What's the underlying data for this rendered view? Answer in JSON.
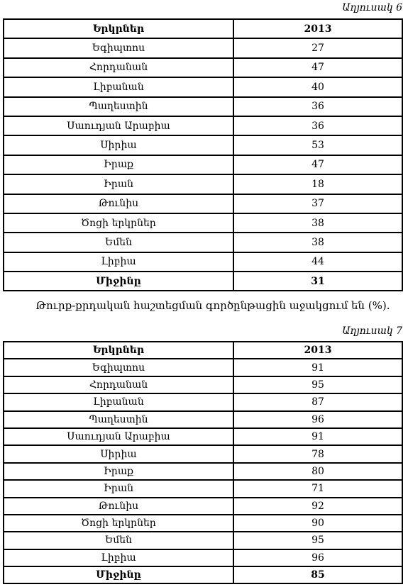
{
  "table1": {
    "caption": "Աղյուսակ 6",
    "header": [
      "Երկրներ",
      "2013"
    ],
    "rows": [
      [
        "Եգիպտոս",
        27
      ],
      [
        "Հորդանան",
        47
      ],
      [
        "Լիբանան",
        40
      ],
      [
        "Պաղեստին",
        36
      ],
      [
        "Սաուդյան Արաբիա",
        36
      ],
      [
        "Սիրիա",
        53
      ],
      [
        "Իրաք",
        47
      ],
      [
        "Իրան",
        18
      ],
      [
        "Թունիս",
        37
      ],
      [
        "Ծոցի երկրներ",
        38
      ],
      [
        "Եմեն",
        38
      ],
      [
        "Լիբիա",
        44
      ]
    ],
    "footer": [
      "Միջինը",
      31
    ]
  },
  "note": "Թուրք-քրդական հաշտեցման գործընթացին աջակցում են (%).",
  "table2": {
    "caption": "Աղյուսակ 7",
    "header": [
      "Երկրներ",
      "2013"
    ],
    "rows": [
      [
        "Եգիպտոս",
        91
      ],
      [
        "Հորդանան",
        95
      ],
      [
        "Լիբանան",
        87
      ],
      [
        "Պաղեստին",
        96
      ],
      [
        "Սաուդյան Արաբիա",
        91
      ],
      [
        "Սիրիա",
        78
      ],
      [
        "Իրաք",
        80
      ],
      [
        "Իրան",
        71
      ],
      [
        "Թունիս",
        92
      ],
      [
        "Ծոցի երկրներ",
        90
      ],
      [
        "Եմեն",
        95
      ],
      [
        "Լիբիա",
        96
      ]
    ],
    "footer": [
      "Միջինը",
      85
    ]
  }
}
